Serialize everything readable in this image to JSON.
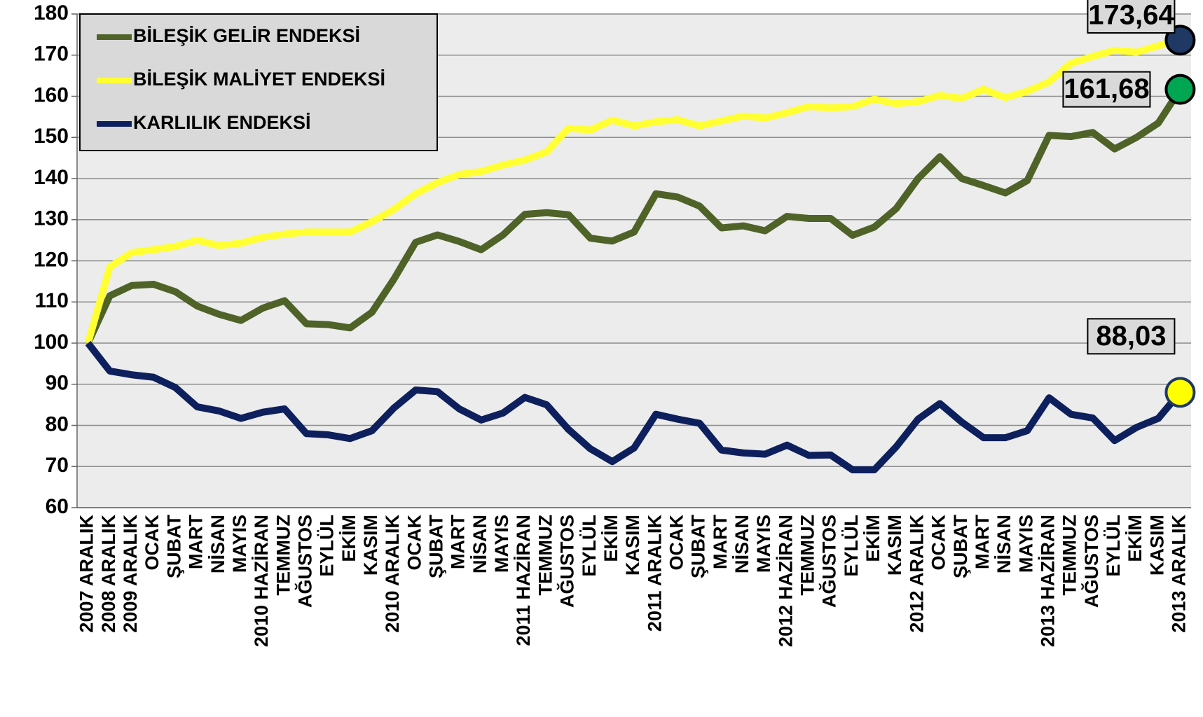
{
  "chart_data": {
    "type": "line",
    "categories": [
      "2007 ARALIK",
      "2008 ARALIK",
      "2009 ARALIK",
      "OCAK",
      "ŞUBAT",
      "MART",
      "NİSAN",
      "MAYIS",
      "2010 HAZİRAN",
      "TEMMUZ",
      "AĞUSTOS",
      "EYLÜL",
      "EKİM",
      "KASIM",
      "2010 ARALIK",
      "OCAK",
      "ŞUBAT",
      "MART",
      "NİSAN",
      "MAYIS",
      "2011 HAZİRAN",
      "TEMMUZ",
      "AĞUSTOS",
      "EYLÜL",
      "EKİM",
      "KASIM",
      "2011 ARALIK",
      "OCAK",
      "ŞUBAT",
      "MART",
      "NİSAN",
      "MAYIS",
      "2012 HAZİRAN",
      "TEMMUZ",
      "AĞUSTOS",
      "EYLÜL",
      "EKİM",
      "KASIM",
      "2012 ARALIK",
      "OCAK",
      "ŞUBAT",
      "MART",
      "NİSAN",
      "MAYIS",
      "2013 HAZİRAN",
      "TEMMUZ",
      "AĞUSTOS",
      "EYLÜL",
      "EKİM",
      "KASIM",
      "2013 ARALIK"
    ],
    "series": [
      {
        "name": "BİLEŞİK GELİR ENDEKSİ",
        "color": "#4f6228",
        "marker_color": "#00a651",
        "values": [
          100,
          111.5,
          114,
          114.3,
          112.5,
          109,
          107,
          105.5,
          108.5,
          110.3,
          104.7,
          104.5,
          103.7,
          107.5,
          115.5,
          124.5,
          126.3,
          124.7,
          122.7,
          126.3,
          131.3,
          131.7,
          131.2,
          125.5,
          124.8,
          127,
          136.3,
          135.5,
          133.3,
          128,
          128.5,
          127.3,
          130.8,
          130.3,
          130.3,
          126.2,
          128.2,
          132.7,
          140,
          145.3,
          140,
          138.3,
          136.5,
          139.5,
          150.5,
          150.2,
          151.2,
          147.2,
          150,
          153.5,
          161.68
        ],
        "value_labels": [
          null,
          null,
          null,
          null,
          null,
          null,
          null,
          null,
          null,
          null,
          null,
          null,
          null,
          null,
          null,
          null,
          null,
          null,
          null,
          null,
          null,
          null,
          null,
          null,
          null,
          null,
          null,
          null,
          null,
          null,
          null,
          null,
          null,
          null,
          null,
          null,
          null,
          null,
          null,
          null,
          null,
          null,
          null,
          null,
          null,
          null,
          null,
          null,
          null,
          null,
          "161,68"
        ]
      },
      {
        "name": "BİLEŞİK MALİYET ENDEKSİ",
        "color": "#ffff33",
        "marker_color": "#1f3864",
        "values": [
          100,
          118.5,
          122,
          122.7,
          123.5,
          125,
          123.7,
          124.3,
          125.7,
          126.5,
          127,
          127,
          127,
          129.5,
          132.5,
          136.3,
          139,
          141,
          141.7,
          143.3,
          144.5,
          146.5,
          152.2,
          151.8,
          154.2,
          152.8,
          153.8,
          154.3,
          152.8,
          154,
          155.2,
          154.7,
          156,
          157.5,
          157.2,
          157.5,
          159.3,
          158.2,
          158.7,
          160.2,
          159.5,
          161.7,
          159.7,
          161.2,
          163.5,
          168,
          169.7,
          171.2,
          170.7,
          172.3,
          173.64
        ],
        "value_labels": [
          null,
          null,
          null,
          null,
          null,
          null,
          null,
          null,
          null,
          null,
          null,
          null,
          null,
          null,
          null,
          null,
          null,
          null,
          null,
          null,
          null,
          null,
          null,
          null,
          null,
          null,
          null,
          null,
          null,
          null,
          null,
          null,
          null,
          null,
          null,
          null,
          null,
          null,
          null,
          null,
          null,
          null,
          null,
          null,
          null,
          null,
          null,
          null,
          null,
          null,
          "173,64"
        ]
      },
      {
        "name": "KARLILIK ENDEKSİ",
        "color": "#0d1f5c",
        "marker_color": "#ffff00",
        "values": [
          100,
          93.2,
          92.3,
          91.7,
          89.2,
          84.5,
          83.5,
          81.7,
          83.2,
          84,
          78,
          77.7,
          76.8,
          78.7,
          84.2,
          88.6,
          88.2,
          84,
          81.3,
          83,
          86.8,
          85,
          79,
          74.3,
          71.2,
          74.5,
          82.7,
          81.5,
          80.5,
          74,
          73.3,
          73,
          75.2,
          72.7,
          72.8,
          69.2,
          69.2,
          74.8,
          81.5,
          85.3,
          80.8,
          77,
          77,
          78.7,
          86.7,
          82.7,
          81.8,
          76.3,
          79.5,
          81.7,
          88.03
        ],
        "value_labels": [
          null,
          null,
          null,
          null,
          null,
          null,
          null,
          null,
          null,
          null,
          null,
          null,
          null,
          null,
          null,
          null,
          null,
          null,
          null,
          null,
          null,
          null,
          null,
          null,
          null,
          null,
          null,
          null,
          null,
          null,
          null,
          null,
          null,
          null,
          null,
          null,
          null,
          null,
          null,
          null,
          null,
          null,
          null,
          null,
          null,
          null,
          null,
          null,
          null,
          null,
          "88,03"
        ]
      }
    ],
    "ylim": [
      60,
      180
    ],
    "yticks": [
      60,
      70,
      80,
      90,
      100,
      110,
      120,
      130,
      140,
      150,
      160,
      170,
      180
    ],
    "grid": true,
    "legend": "top-left"
  }
}
